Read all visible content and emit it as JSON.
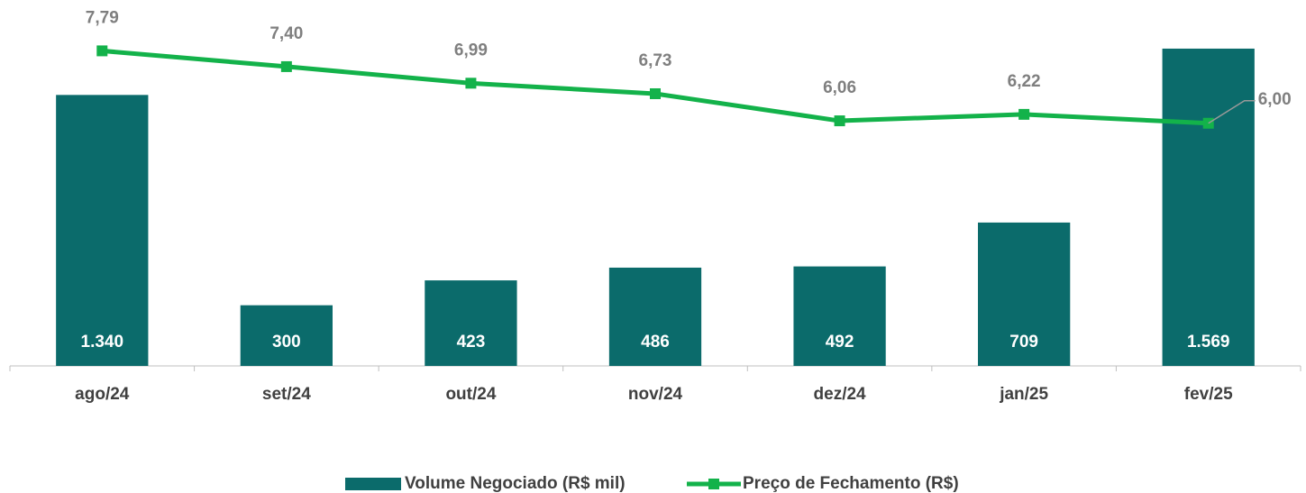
{
  "chart_data": {
    "type": "bar-line",
    "categories": [
      "ago/24",
      "set/24",
      "out/24",
      "nov/24",
      "dez/24",
      "jan/25",
      "fev/25"
    ],
    "series": [
      {
        "name": "Volume Negociado (R$ mil)",
        "type": "bar",
        "color": "#0b6b6b",
        "values": [
          1340,
          300,
          423,
          486,
          492,
          709,
          1569
        ],
        "value_labels": [
          "1.340",
          "300",
          "423",
          "486",
          "492",
          "709",
          "1.569"
        ]
      },
      {
        "name": "Preço de Fechamento (R$)",
        "type": "line",
        "axis": "y2",
        "color": "#13b24a",
        "values": [
          7.79,
          7.4,
          6.99,
          6.73,
          6.06,
          6.22,
          6.0
        ],
        "value_labels": [
          "7,79",
          "7,40",
          "6,99",
          "6,73",
          "6,06",
          "6,22",
          "6,00"
        ]
      }
    ],
    "ylim": [
      0,
      1600
    ],
    "y2lim": [
      0,
      8
    ],
    "legend": "bottom"
  }
}
